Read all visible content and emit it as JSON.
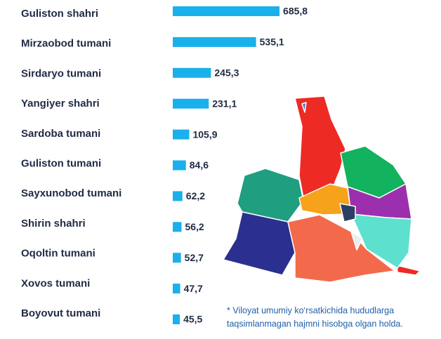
{
  "chart_data": {
    "type": "bar",
    "orientation": "horizontal",
    "color": "#1ab0ec",
    "categories": [
      "Guliston shahri",
      "Mirzaobod tumani",
      "Sirdaryo tumani",
      "Yangiyer shahri",
      "Sardoba tumani",
      "Guliston tumani",
      "Sayxunobod tumani",
      "Shirin shahri",
      "Oqoltin tumani",
      "Xovos tumani",
      "Boyovut tumani"
    ],
    "values": [
      685.8,
      535.1,
      245.3,
      231.1,
      105.9,
      84.6,
      62.2,
      56.2,
      52.7,
      47.7,
      45.5
    ],
    "value_labels": [
      "685,8",
      "535,1",
      "245,3",
      "231,1",
      "105,9",
      "84,6",
      "62,2",
      "56,2",
      "52,7",
      "47,7",
      "45,5"
    ],
    "note": [
      "* Viloyat umumiy ko‘rsatkichida hududlarga",
      "taqsimlanmagan hajmni hisobga olgan holda."
    ]
  }
}
